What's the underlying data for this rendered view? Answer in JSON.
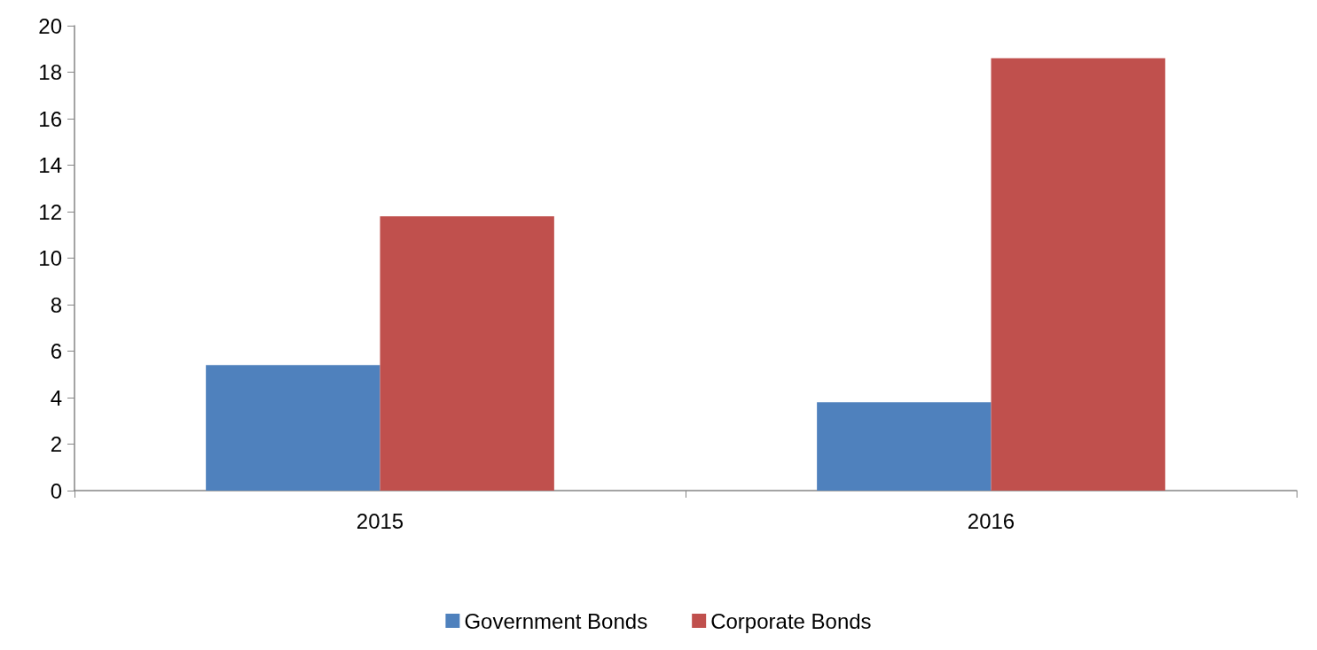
{
  "chart_data": {
    "type": "bar",
    "categories": [
      "2015",
      "2016"
    ],
    "series": [
      {
        "name": "Government Bonds",
        "color": "#4f81bd",
        "values": [
          5.4,
          3.8
        ]
      },
      {
        "name": "Corporate Bonds",
        "color": "#c0504d",
        "values": [
          11.8,
          18.6
        ]
      }
    ],
    "ylim": [
      0,
      20
    ],
    "yticks": [
      0,
      2,
      4,
      6,
      8,
      10,
      12,
      14,
      16,
      18,
      20
    ],
    "grid": false,
    "legend": "bottom"
  }
}
